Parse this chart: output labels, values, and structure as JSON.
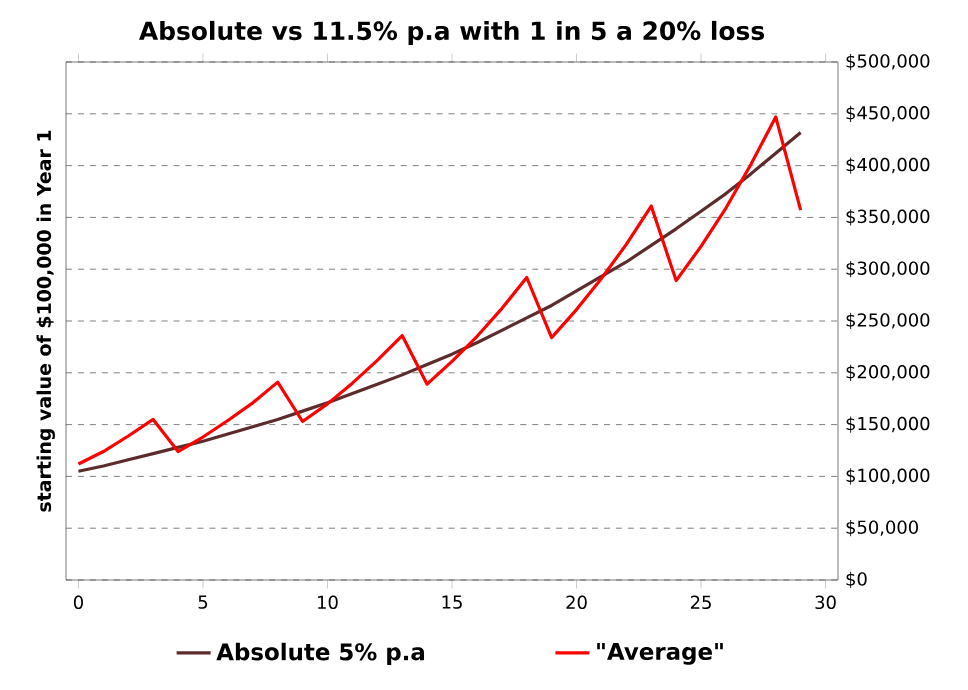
{
  "chart_data": {
    "type": "line",
    "title": "Absolute vs 11.5% p.a with 1 in 5 a 20% loss",
    "ylabel": "starting value of $100,000 in Year 1",
    "x": [
      0,
      1,
      2,
      3,
      4,
      5,
      6,
      7,
      8,
      9,
      10,
      11,
      12,
      13,
      14,
      15,
      16,
      17,
      18,
      19,
      20,
      21,
      22,
      23,
      24,
      25,
      26,
      27,
      28,
      29
    ],
    "series": [
      {
        "name": "Absolute 5% p.a",
        "color": "#5c2b2b",
        "values": [
          105000,
          110000,
          116000,
          122000,
          128000,
          134000,
          141000,
          148000,
          155000,
          163000,
          171000,
          180000,
          189000,
          198000,
          208000,
          218000,
          229000,
          241000,
          253000,
          265000,
          279000,
          293000,
          307000,
          323000,
          339000,
          356000,
          373000,
          392000,
          412000,
          432000
        ]
      },
      {
        "name": "\"Average\"",
        "color": "#ff0000",
        "values": [
          112000,
          124000,
          139000,
          155000,
          124000,
          138000,
          154000,
          171000,
          191000,
          153000,
          170000,
          190000,
          212000,
          236000,
          189000,
          211000,
          235000,
          262000,
          292000,
          234000,
          261000,
          291000,
          324000,
          361000,
          289000,
          322000,
          359000,
          401000,
          447000,
          357000
        ]
      }
    ],
    "xlim": [
      -0.5,
      30.5
    ],
    "xticks": [
      0,
      5,
      10,
      15,
      20,
      25,
      30
    ],
    "ylim": [
      0,
      500000
    ],
    "yticks": [
      {
        "value": 0,
        "label": "$0"
      },
      {
        "value": 50000,
        "label": "$50,000"
      },
      {
        "value": 100000,
        "label": "$100,000"
      },
      {
        "value": 150000,
        "label": "$150,000"
      },
      {
        "value": 200000,
        "label": "$200,000"
      },
      {
        "value": 250000,
        "label": "$250,000"
      },
      {
        "value": 300000,
        "label": "$300,000"
      },
      {
        "value": 350000,
        "label": "$350,000"
      },
      {
        "value": 400000,
        "label": "$400,000"
      },
      {
        "value": 450000,
        "label": "$450,000"
      },
      {
        "value": 500000,
        "label": "$500,000"
      }
    ],
    "grid": "y",
    "legend": "bottom"
  }
}
